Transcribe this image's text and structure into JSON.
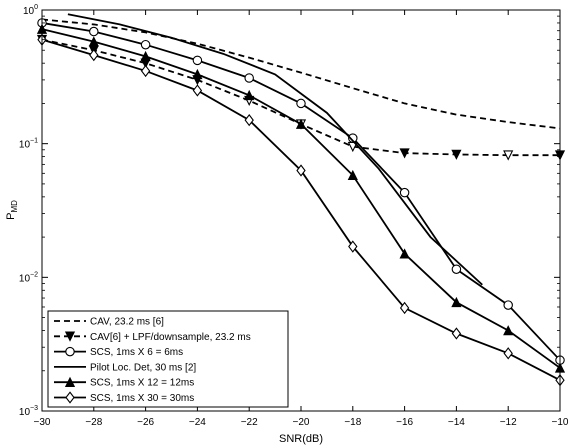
{
  "chart_data": {
    "type": "line",
    "title": "",
    "xlabel": "SNR(dB)",
    "ylabel_main": "P",
    "ylabel_sub": "MD",
    "xlim": [
      -30,
      -10
    ],
    "ylim": [
      0.001,
      1
    ],
    "yscale": "log",
    "xticks": [
      -30,
      -28,
      -26,
      -24,
      -22,
      -20,
      -18,
      -16,
      -14,
      -12,
      -10
    ],
    "xtick_labels": [
      "−30",
      "−28",
      "−26",
      "−24",
      "−22",
      "−20",
      "−18",
      "−16",
      "−14",
      "−12",
      "−10"
    ],
    "yticks": [
      {
        "value": 1,
        "base": "10",
        "exp": "0"
      },
      {
        "value": 0.1,
        "base": "10",
        "exp": "−1"
      },
      {
        "value": 0.01,
        "base": "10",
        "exp": "−2"
      },
      {
        "value": 0.001,
        "base": "10",
        "exp": "−3"
      }
    ],
    "grid": false,
    "legend_position": "bottom-left",
    "series": [
      {
        "name": "CAV, 23.2 ms [6]",
        "style": "dashed",
        "marker": "none",
        "x": [
          -30,
          -28,
          -26,
          -24,
          -22,
          -20,
          -18,
          -16,
          -14,
          -12,
          -10
        ],
        "y": [
          0.85,
          0.78,
          0.68,
          0.56,
          0.44,
          0.34,
          0.26,
          0.2,
          0.165,
          0.145,
          0.13
        ]
      },
      {
        "name": "CAV[6] + LPF/downsample, 23.2 ms",
        "style": "dashed",
        "marker": "triangle-down-filled",
        "x": [
          -30,
          -28,
          -26,
          -24,
          -22,
          -20,
          -18,
          -16,
          -14,
          -12,
          -10
        ],
        "y": [
          0.6,
          0.5,
          0.4,
          0.3,
          0.21,
          0.14,
          0.095,
          0.085,
          0.083,
          0.082,
          0.082
        ]
      },
      {
        "name": "SCS, 1ms X 6 = 6ms",
        "style": "solid",
        "marker": "circle-open",
        "x": [
          -30,
          -28,
          -26,
          -24,
          -22,
          -20,
          -18,
          -16,
          -14,
          -12,
          -10
        ],
        "y": [
          0.8,
          0.69,
          0.55,
          0.42,
          0.31,
          0.2,
          0.11,
          0.043,
          0.0115,
          0.0062,
          0.0024
        ]
      },
      {
        "name": "Pilot Loc. Det, 30 ms [2]",
        "style": "solid",
        "marker": "none",
        "x": [
          -29,
          -27,
          -25,
          -23,
          -21,
          -19,
          -17,
          -15,
          -13
        ],
        "y": [
          0.93,
          0.78,
          0.62,
          0.47,
          0.33,
          0.17,
          0.065,
          0.02,
          0.0088
        ]
      },
      {
        "name": "SCS, 1ms X 12 = 12ms",
        "style": "solid",
        "marker": "triangle-up-filled",
        "x": [
          -30,
          -28,
          -26,
          -24,
          -22,
          -20,
          -18,
          -16,
          -14,
          -12,
          -10
        ],
        "y": [
          0.72,
          0.58,
          0.45,
          0.33,
          0.23,
          0.14,
          0.058,
          0.015,
          0.0065,
          0.004,
          0.0021
        ]
      },
      {
        "name": "SCS, 1ms X 30 = 30ms",
        "style": "solid",
        "marker": "diamond-open",
        "x": [
          -30,
          -28,
          -26,
          -24,
          -22,
          -20,
          -18,
          -16,
          -14,
          -12,
          -10
        ],
        "y": [
          0.6,
          0.46,
          0.35,
          0.25,
          0.15,
          0.063,
          0.017,
          0.0059,
          0.0038,
          0.0027,
          0.0017
        ]
      }
    ]
  }
}
